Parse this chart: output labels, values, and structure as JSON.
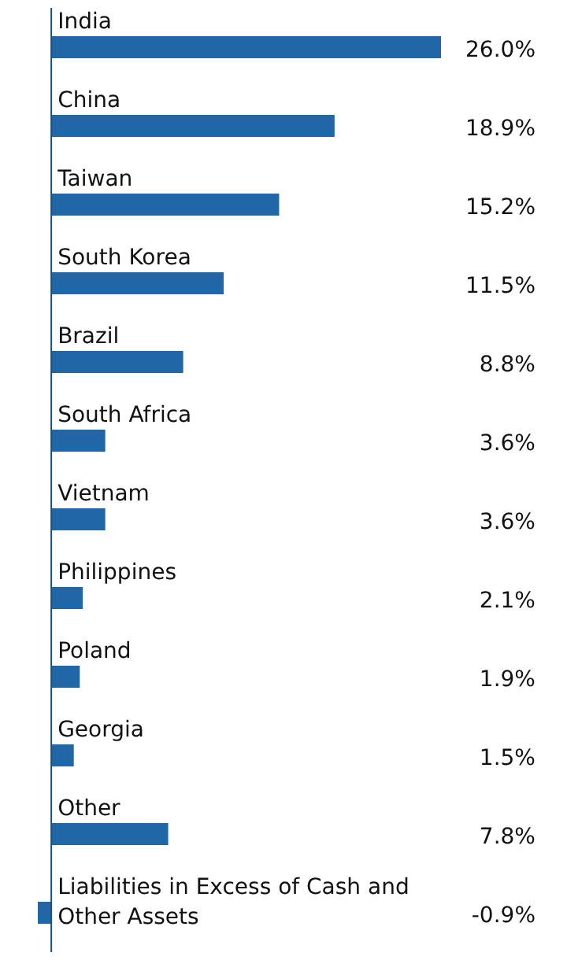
{
  "chart_data": {
    "type": "bar",
    "orientation": "horizontal",
    "categories": [
      "India",
      "China",
      "Taiwan",
      "South Korea",
      "Brazil",
      "South Africa",
      "Vietnam",
      "Philippines",
      "Poland",
      "Georgia",
      "Other",
      "Liabilities in Excess of Cash and Other Assets"
    ],
    "values": [
      26.0,
      18.9,
      15.2,
      11.5,
      8.8,
      3.6,
      3.6,
      2.1,
      1.9,
      1.5,
      7.8,
      -0.9
    ],
    "value_labels": [
      "26.0%",
      "18.9%",
      "15.2%",
      "11.5%",
      "8.8%",
      "3.6%",
      "3.6%",
      "2.1%",
      "1.9%",
      "1.5%",
      "7.8%",
      "-0.9%"
    ],
    "color": "#1f67a6",
    "grid": false
  }
}
